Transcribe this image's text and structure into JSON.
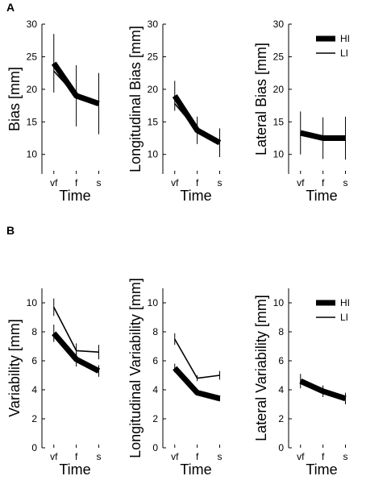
{
  "figure": {
    "panel_labels": [
      "A",
      "B"
    ]
  },
  "chart_data": [
    {
      "type": "line",
      "panel": "A",
      "title": "",
      "xlabel": "Time",
      "ylabel": "Bias [mm]",
      "categories": [
        "vf",
        "f",
        "s"
      ],
      "ylim": [
        7,
        30
      ],
      "yticks": [
        10,
        15,
        20,
        25,
        30
      ],
      "series": [
        {
          "name": "HI",
          "values": [
            24.0,
            19.0,
            17.8
          ],
          "err": [
            4.5,
            4.7,
            4.7
          ]
        },
        {
          "name": "LI",
          "values": [
            22.8,
            19.0,
            17.8
          ],
          "err": [
            0,
            0,
            0
          ]
        }
      ],
      "legend": null
    },
    {
      "type": "line",
      "panel": "A",
      "title": "",
      "xlabel": "Time",
      "ylabel": "Longitudinal Bias [mm]",
      "categories": [
        "vf",
        "f",
        "s"
      ],
      "ylim": [
        7,
        30
      ],
      "yticks": [
        10,
        15,
        20,
        25,
        30
      ],
      "series": [
        {
          "name": "HI",
          "values": [
            19.0,
            13.7,
            11.8
          ],
          "err": [
            2.3,
            2.1,
            2.2
          ]
        },
        {
          "name": "LI",
          "values": [
            17.8,
            13.7,
            11.8
          ],
          "err": [
            0,
            0,
            0
          ]
        }
      ],
      "legend": null
    },
    {
      "type": "line",
      "panel": "A",
      "title": "",
      "xlabel": "Time",
      "ylabel": "Lateral Bias [mm]",
      "categories": [
        "vf",
        "f",
        "s"
      ],
      "ylim": [
        7,
        30
      ],
      "yticks": [
        10,
        15,
        20,
        25,
        30
      ],
      "series": [
        {
          "name": "HI",
          "values": [
            13.3,
            12.5,
            12.5
          ],
          "err": [
            3.3,
            3.2,
            3.3
          ]
        },
        {
          "name": "LI",
          "values": [
            13.3,
            12.5,
            12.5
          ],
          "err": [
            0,
            0,
            0
          ]
        }
      ],
      "legend": {
        "position": "top-right",
        "entries": [
          "HI",
          "LI"
        ]
      }
    },
    {
      "type": "line",
      "panel": "B",
      "title": "",
      "xlabel": "Time",
      "ylabel": "Variability [mm]",
      "categories": [
        "vf",
        "f",
        "s"
      ],
      "ylim": [
        0,
        11
      ],
      "yticks": [
        0,
        2,
        4,
        6,
        8,
        10
      ],
      "series": [
        {
          "name": "HI",
          "values": [
            7.9,
            6.1,
            5.3
          ],
          "err": [
            0.6,
            0.5,
            0.4
          ]
        },
        {
          "name": "LI",
          "values": [
            9.7,
            6.7,
            6.6
          ],
          "err": [
            0.6,
            0.5,
            0.5
          ]
        }
      ],
      "legend": null
    },
    {
      "type": "line",
      "panel": "B",
      "title": "",
      "xlabel": "Time",
      "ylabel": "Longitudinal Variability [mm]",
      "categories": [
        "vf",
        "f",
        "s"
      ],
      "ylim": [
        0,
        11
      ],
      "yticks": [
        0,
        2,
        4,
        6,
        8,
        10
      ],
      "series": [
        {
          "name": "HI",
          "values": [
            5.5,
            3.8,
            3.4
          ],
          "err": [
            0.3,
            0.1,
            0.2
          ]
        },
        {
          "name": "LI",
          "values": [
            7.5,
            4.8,
            5.0
          ],
          "err": [
            0.4,
            0.2,
            0.3
          ]
        }
      ],
      "legend": null
    },
    {
      "type": "line",
      "panel": "B",
      "title": "",
      "xlabel": "Time",
      "ylabel": "Lateral Variability [mm]",
      "categories": [
        "vf",
        "f",
        "s"
      ],
      "ylim": [
        0,
        11
      ],
      "yticks": [
        0,
        2,
        4,
        6,
        8,
        10
      ],
      "series": [
        {
          "name": "HI",
          "values": [
            4.6,
            3.9,
            3.4
          ],
          "err": [
            0.5,
            0.4,
            0.4
          ]
        },
        {
          "name": "LI",
          "values": [
            4.6,
            3.9,
            3.4
          ],
          "err": [
            0,
            0,
            0
          ]
        }
      ],
      "legend": {
        "position": "top-right",
        "entries": [
          "HI",
          "LI"
        ]
      }
    }
  ]
}
